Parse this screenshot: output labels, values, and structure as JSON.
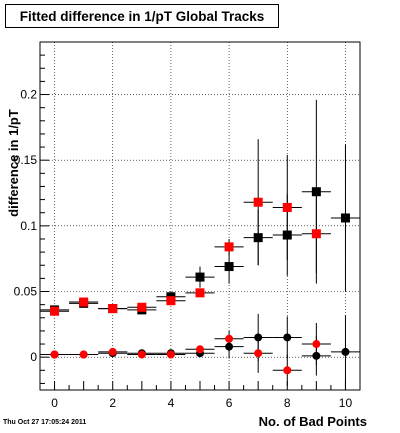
{
  "chart_data": {
    "type": "scatter",
    "title": "Fitted difference in 1/pT  Global Tracks",
    "xlabel": "No. of Bad Points",
    "ylabel": "difference in 1/pT",
    "xlim": [
      -0.5,
      10.5
    ],
    "ylim": [
      -0.025,
      0.24
    ],
    "x_ticks": [
      0,
      2,
      4,
      6,
      8,
      10
    ],
    "y_ticks": [
      0,
      0.05,
      0.1,
      0.15,
      0.2
    ],
    "y_tick_labels": [
      "0",
      "0.05",
      "0.1",
      "0.15",
      "0.2"
    ],
    "grid": true,
    "series": [
      {
        "marker": "square",
        "color": "#000000",
        "points": [
          {
            "x": 0,
            "y": 0.036,
            "yerr": 0.002
          },
          {
            "x": 1,
            "y": 0.041,
            "yerr": 0.002
          },
          {
            "x": 2,
            "y": 0.037,
            "yerr": 0.002
          },
          {
            "x": 3,
            "y": 0.036,
            "yerr": 0.003
          },
          {
            "x": 4,
            "y": 0.046,
            "yerr": 0.004
          },
          {
            "x": 5,
            "y": 0.061,
            "yerr": 0.008
          },
          {
            "x": 6,
            "y": 0.069,
            "yerr": 0.013
          },
          {
            "x": 7,
            "y": 0.091,
            "yerr": 0.021
          },
          {
            "x": 8,
            "y": 0.093,
            "yerr": 0.031
          },
          {
            "x": 9,
            "y": 0.126,
            "yerr": 0.07
          },
          {
            "x": 10,
            "y": 0.106,
            "yerr": 0.056
          }
        ]
      },
      {
        "marker": "square",
        "color": "#ff0000",
        "points": [
          {
            "x": 0,
            "y": 0.035
          },
          {
            "x": 1,
            "y": 0.042
          },
          {
            "x": 2,
            "y": 0.037
          },
          {
            "x": 3,
            "y": 0.038
          },
          {
            "x": 4,
            "y": 0.043
          },
          {
            "x": 5,
            "y": 0.049
          },
          {
            "x": 6,
            "y": 0.084,
            "yerr": 0.006
          },
          {
            "x": 7,
            "y": 0.118,
            "yerr": 0.048
          },
          {
            "x": 8,
            "y": 0.114,
            "yerr": 0.04
          },
          {
            "x": 9,
            "y": 0.094,
            "yerr": 0.03
          }
        ]
      },
      {
        "marker": "circle",
        "color": "#000000",
        "points": [
          {
            "x": 0,
            "y": 0.002
          },
          {
            "x": 1,
            "y": 0.002
          },
          {
            "x": 2,
            "y": 0.003
          },
          {
            "x": 3,
            "y": 0.003
          },
          {
            "x": 4,
            "y": 0.003
          },
          {
            "x": 5,
            "y": 0.003,
            "yerr": 0.003
          },
          {
            "x": 6,
            "y": 0.008,
            "yerr": 0.009
          },
          {
            "x": 7,
            "y": 0.015,
            "yerr": 0.018
          },
          {
            "x": 8,
            "y": 0.015,
            "yerr": 0.016
          },
          {
            "x": 9,
            "y": 0.001,
            "yerr": 0.015
          },
          {
            "x": 10,
            "y": 0.004,
            "yerr": 0.028
          }
        ]
      },
      {
        "marker": "circle",
        "color": "#ff0000",
        "points": [
          {
            "x": 0,
            "y": 0.002
          },
          {
            "x": 1,
            "y": 0.002
          },
          {
            "x": 2,
            "y": 0.004
          },
          {
            "x": 3,
            "y": 0.002
          },
          {
            "x": 4,
            "y": 0.002
          },
          {
            "x": 5,
            "y": 0.006
          },
          {
            "x": 6,
            "y": 0.014,
            "yerr": 0.006
          },
          {
            "x": 7,
            "y": 0.003,
            "yerr": 0.015
          },
          {
            "x": 8,
            "y": -0.01,
            "yerr": 0.012
          },
          {
            "x": 9,
            "y": 0.01,
            "yerr": 0.016
          }
        ]
      }
    ]
  },
  "timestamp": "Thu Oct 27 17:05:24 2011"
}
